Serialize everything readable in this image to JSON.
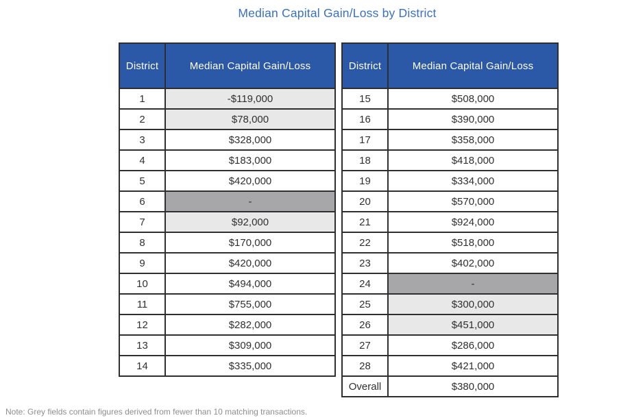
{
  "chart_data": {
    "type": "table",
    "title": "Median Capital Gain/Loss by District",
    "columns": [
      "District",
      "Median Capital Gain/Loss"
    ],
    "note": "Note: Grey fields contain figures derived from fewer than 10 matching transactions.",
    "shading_legend": {
      "light": "figure derived from fewer than 10 matching transactions",
      "dark": "no figure available (fewer than 10 matching transactions)"
    },
    "tables": [
      {
        "rows": [
          [
            "1",
            "-$119,000",
            "light"
          ],
          [
            "2",
            "$78,000",
            "light"
          ],
          [
            "3",
            "$328,000",
            "none"
          ],
          [
            "4",
            "$183,000",
            "none"
          ],
          [
            "5",
            "$420,000",
            "none"
          ],
          [
            "6",
            "-",
            "dark"
          ],
          [
            "7",
            "$92,000",
            "light"
          ],
          [
            "8",
            "$170,000",
            "none"
          ],
          [
            "9",
            "$420,000",
            "none"
          ],
          [
            "10",
            "$494,000",
            "none"
          ],
          [
            "11",
            "$755,000",
            "none"
          ],
          [
            "12",
            "$282,000",
            "none"
          ],
          [
            "13",
            "$309,000",
            "none"
          ],
          [
            "14",
            "$335,000",
            "none"
          ]
        ]
      },
      {
        "rows": [
          [
            "15",
            "$508,000",
            "none"
          ],
          [
            "16",
            "$390,000",
            "none"
          ],
          [
            "17",
            "$358,000",
            "none"
          ],
          [
            "18",
            "$418,000",
            "none"
          ],
          [
            "19",
            "$334,000",
            "none"
          ],
          [
            "20",
            "$570,000",
            "none"
          ],
          [
            "21",
            "$924,000",
            "none"
          ],
          [
            "22",
            "$518,000",
            "none"
          ],
          [
            "23",
            "$402,000",
            "none"
          ],
          [
            "24",
            "-",
            "dark"
          ],
          [
            "25",
            "$300,000",
            "light"
          ],
          [
            "26",
            "$451,000",
            "light"
          ],
          [
            "27",
            "$286,000",
            "none"
          ],
          [
            "28",
            "$421,000",
            "none"
          ],
          [
            "Overall",
            "$380,000",
            "none"
          ]
        ]
      }
    ]
  },
  "colors": {
    "header_bg": "#2c59a7",
    "header_text": "#ffffff",
    "title_text": "#3a70c4",
    "border": "#2e2e2e",
    "body_text": "#303030",
    "light_grey": "#e8e8e8",
    "dark_grey": "#a7a7aa",
    "note_text": "#8e8e8e"
  }
}
